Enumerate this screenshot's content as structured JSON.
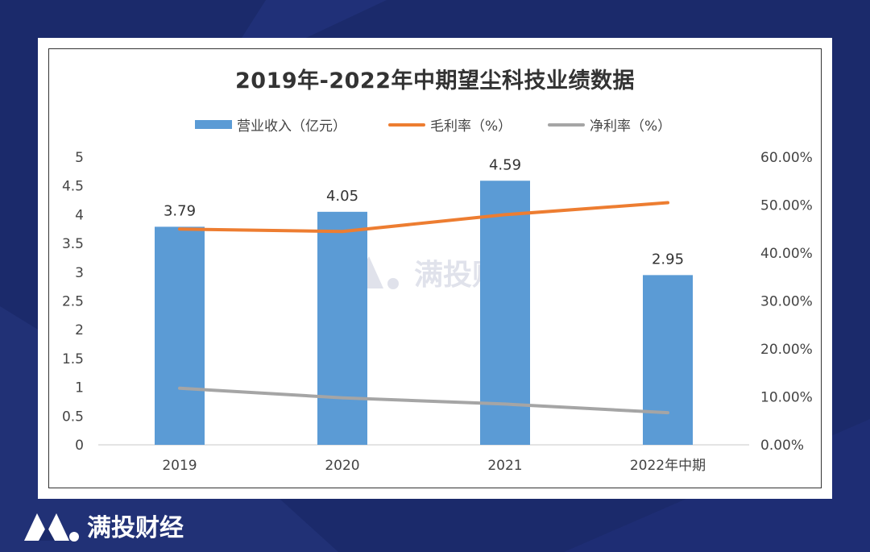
{
  "brand": {
    "name": "满投财经",
    "bg_color": "#1b2a6b",
    "logo_icon": "m-mountain-logo"
  },
  "chart_data": {
    "type": "bar",
    "title": "2019年-2022年中期望尘科技业绩数据",
    "categories": [
      "2019",
      "2020",
      "2021",
      "2022年中期"
    ],
    "series": [
      {
        "name": "营业收入（亿元）",
        "type": "bar",
        "axis": "left",
        "color": "#5b9bd5",
        "values": [
          3.79,
          4.05,
          4.59,
          2.95
        ],
        "labels": [
          "3.79",
          "4.05",
          "4.59",
          "2.95"
        ]
      },
      {
        "name": "毛利率（%）",
        "type": "line",
        "axis": "right",
        "color": "#ed7d31",
        "values": [
          45.0,
          44.5,
          48.0,
          50.5
        ]
      },
      {
        "name": "净利率（%）",
        "type": "line",
        "axis": "right",
        "color": "#a5a5a5",
        "values": [
          11.8,
          9.8,
          8.5,
          6.7
        ]
      }
    ],
    "y_left": {
      "min": 0,
      "max": 5,
      "ticks": [
        "0",
        "0.5",
        "1",
        "1.5",
        "2",
        "2.5",
        "3",
        "3.5",
        "4",
        "4.5",
        "5"
      ]
    },
    "y_right": {
      "min": 0,
      "max": 60,
      "ticks": [
        "0.00%",
        "10.00%",
        "20.00%",
        "30.00%",
        "40.00%",
        "50.00%",
        "60.00%"
      ]
    },
    "legend_position": "top",
    "grid": false
  }
}
